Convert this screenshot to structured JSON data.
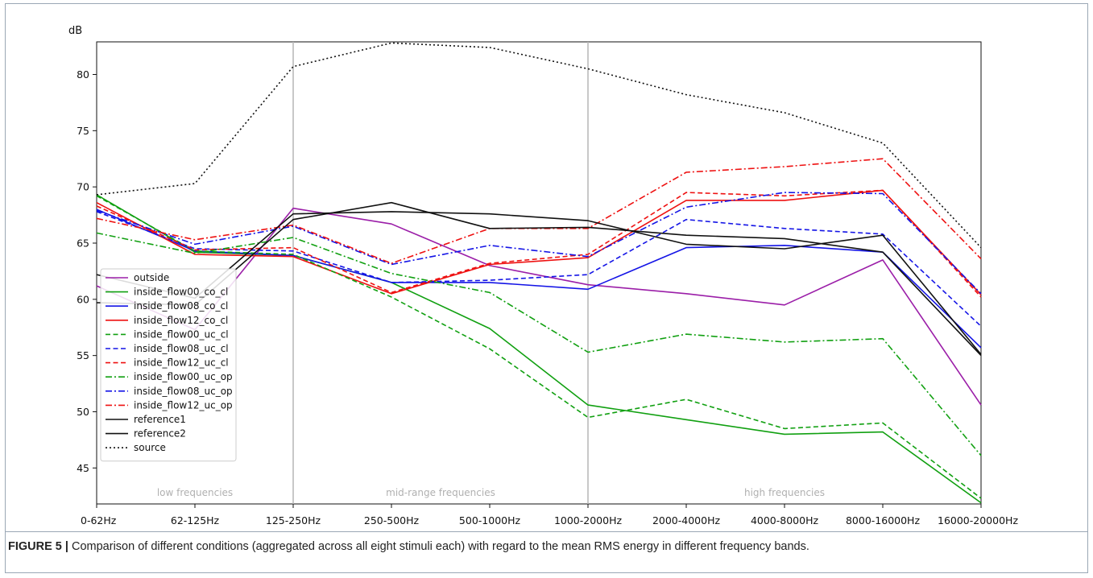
{
  "figure": {
    "label": "FIGURE 5 |",
    "caption": " Comparison of different conditions (aggregated across all eight stimuli each) with regard to the mean RMS energy in different frequency bands."
  },
  "chart_data": {
    "type": "line",
    "title": "",
    "xlabel": "",
    "ylabel": "dB",
    "ylim": [
      41.8,
      82.9
    ],
    "yticks": [
      45,
      50,
      55,
      60,
      65,
      70,
      75,
      80
    ],
    "grid": false,
    "legend_position": "lower-left",
    "categories": [
      "0-62Hz",
      "62-125Hz",
      "125-250Hz",
      "250-500Hz",
      "500-1000Hz",
      "1000-2000Hz",
      "2000-4000Hz",
      "4000-8000Hz",
      "8000-16000Hz",
      "16000-20000Hz"
    ],
    "regions": [
      {
        "label": "low frequencies",
        "from": 0,
        "to": 2
      },
      {
        "label": "mid-range frequencies",
        "from": 2,
        "to": 5
      },
      {
        "label": "high frequencies",
        "from": 5,
        "to": 9
      }
    ],
    "separators_at": [
      2,
      5
    ],
    "series": [
      {
        "name": "outside",
        "color": "#9b1ea8",
        "dash": "solid",
        "values": [
          61.2,
          57.3,
          68.1,
          66.7,
          63.0,
          61.3,
          60.5,
          59.5,
          63.5,
          50.6
        ]
      },
      {
        "name": "inside_flow00_co_cl",
        "color": "#11a011",
        "dash": "solid",
        "values": [
          69.3,
          64.2,
          63.9,
          61.5,
          57.4,
          50.6,
          49.3,
          48.0,
          48.2,
          41.9
        ]
      },
      {
        "name": "inside_flow08_co_cl",
        "color": "#1414e6",
        "dash": "solid",
        "values": [
          68.0,
          64.3,
          63.9,
          61.5,
          61.5,
          60.9,
          64.6,
          64.8,
          64.2,
          55.7
        ]
      },
      {
        "name": "inside_flow12_co_cl",
        "color": "#ee1111",
        "dash": "solid",
        "values": [
          68.6,
          64.0,
          63.8,
          60.5,
          63.1,
          63.7,
          68.8,
          68.8,
          69.7,
          60.4
        ]
      },
      {
        "name": "inside_flow00_uc_cl",
        "color": "#11a011",
        "dash": "dashed",
        "values": [
          69.2,
          64.3,
          64.0,
          60.2,
          55.6,
          49.5,
          51.1,
          48.5,
          49.0,
          42.3
        ]
      },
      {
        "name": "inside_flow08_uc_cl",
        "color": "#1414e6",
        "dash": "dashed",
        "values": [
          67.8,
          64.5,
          64.3,
          61.5,
          61.7,
          62.2,
          67.1,
          66.3,
          65.8,
          57.6
        ]
      },
      {
        "name": "inside_flow12_uc_cl",
        "color": "#ee1111",
        "dash": "dashed",
        "values": [
          68.3,
          64.4,
          64.6,
          60.6,
          63.2,
          64.0,
          69.5,
          69.2,
          69.7,
          60.2
        ]
      },
      {
        "name": "inside_flow00_uc_op",
        "color": "#11a011",
        "dash": "dashdot",
        "values": [
          65.9,
          64.1,
          65.5,
          62.3,
          60.6,
          55.3,
          56.9,
          56.2,
          56.5,
          46.1
        ]
      },
      {
        "name": "inside_flow08_uc_op",
        "color": "#1414e6",
        "dash": "dashdot",
        "values": [
          67.9,
          64.9,
          66.5,
          63.1,
          64.8,
          63.8,
          68.2,
          69.5,
          69.4,
          60.5
        ]
      },
      {
        "name": "inside_flow12_uc_op",
        "color": "#ee1111",
        "dash": "dashdot",
        "values": [
          67.2,
          65.3,
          66.6,
          63.2,
          66.3,
          66.3,
          71.3,
          71.8,
          72.5,
          63.6
        ]
      },
      {
        "name": "reference1",
        "color": "#111111",
        "dash": "solid",
        "values": [
          62.2,
          60.1,
          67.6,
          67.8,
          67.6,
          67.0,
          64.9,
          64.5,
          65.7,
          55.1
        ]
      },
      {
        "name": "reference2",
        "color": "#111111",
        "dash": "solid",
        "values": [
          59.7,
          59.5,
          67.1,
          68.6,
          66.3,
          66.4,
          65.7,
          65.4,
          64.2,
          55.0
        ]
      },
      {
        "name": "source",
        "color": "#111111",
        "dash": "dotted",
        "values": [
          69.3,
          70.3,
          80.7,
          82.8,
          82.4,
          80.5,
          78.2,
          76.6,
          73.9,
          64.6
        ]
      }
    ]
  }
}
